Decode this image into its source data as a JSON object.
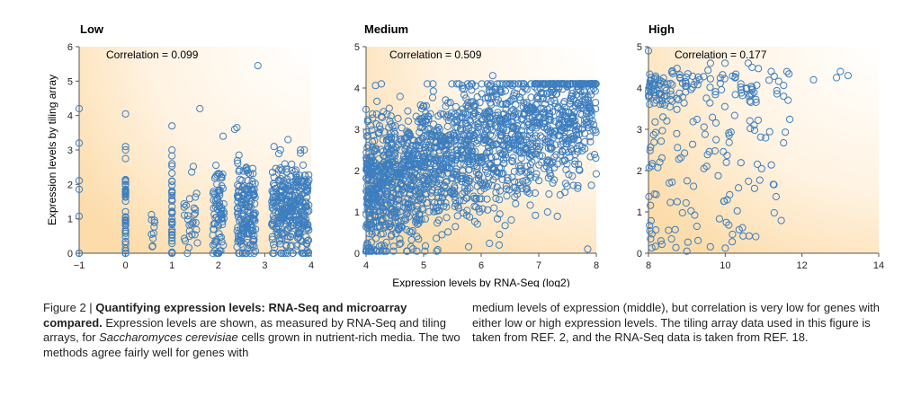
{
  "colors": {
    "marker": "#3d7ebf",
    "gradient_outer": "#fcdcaa",
    "gradient_inner": "#ffffff",
    "axis": "#555555",
    "text": "#231f20"
  },
  "chart_data": [
    {
      "type": "scatter",
      "title": "Low",
      "annotation": "Correlation = 0.099",
      "xlim": [
        -1,
        4
      ],
      "ylim": [
        0,
        6
      ],
      "xticks": [
        -1,
        0,
        1,
        2,
        3,
        4
      ],
      "yticks": [
        0,
        1,
        2,
        3,
        4,
        5,
        6
      ],
      "ylabel": "Expression levels by tiling array",
      "seed": 11,
      "clusters": [
        {
          "x": -1,
          "x_spread": 0.0,
          "n": 6,
          "y_mean": 1.2,
          "y_sd": 1.4
        },
        {
          "x": 0,
          "x_spread": 0.0,
          "n": 40,
          "y_mean": 1.0,
          "y_sd": 0.9
        },
        {
          "x": 0.6,
          "x_spread": 0.05,
          "n": 10,
          "y_mean": 0.9,
          "y_sd": 0.6
        },
        {
          "x": 1,
          "x_spread": 0.0,
          "n": 40,
          "y_mean": 1.1,
          "y_sd": 0.8
        },
        {
          "x": 1.4,
          "x_spread": 0.15,
          "n": 30,
          "y_mean": 1.0,
          "y_sd": 0.7
        },
        {
          "x": 2,
          "x_spread": 0.12,
          "n": 80,
          "y_mean": 1.1,
          "y_sd": 0.8
        },
        {
          "x": 2.6,
          "x_spread": 0.2,
          "n": 170,
          "y_mean": 1.2,
          "y_sd": 0.75
        },
        {
          "x": 3.55,
          "x_spread": 0.4,
          "n": 320,
          "y_mean": 1.3,
          "y_sd": 0.75
        }
      ],
      "outliers": [
        [
          -1,
          4.2
        ],
        [
          -1,
          3.2
        ],
        [
          0,
          4.05
        ],
        [
          0,
          3.1
        ],
        [
          1,
          3.7
        ],
        [
          1.6,
          4.2
        ],
        [
          2.4,
          3.65
        ],
        [
          2.35,
          3.6
        ],
        [
          2.85,
          5.45
        ],
        [
          3.5,
          3.3
        ],
        [
          2.1,
          3.4
        ],
        [
          3.2,
          3.1
        ]
      ],
      "xlabel": ""
    },
    {
      "type": "scatter",
      "title": "Medium",
      "annotation": "Correlation = 0.509",
      "xlim": [
        4,
        8
      ],
      "ylim": [
        0,
        5
      ],
      "xticks": [
        4,
        5,
        6,
        7,
        8
      ],
      "yticks": [
        0,
        1,
        2,
        3,
        4,
        5
      ],
      "xlabel": "Expression levels by RNA-Seq (log2)",
      "ylabel": "",
      "seed": 23,
      "n_points": 1900,
      "trend": {
        "x0": 4.0,
        "y0": 1.55,
        "x1": 8.0,
        "y1": 3.6
      },
      "noise_sd": 0.85,
      "outliers": [
        [
          5.9,
          4.05
        ],
        [
          6.2,
          4.3
        ],
        [
          4.3,
          0.1
        ],
        [
          7.85,
          0.1
        ]
      ]
    },
    {
      "type": "scatter",
      "title": "High",
      "annotation": "Correlation = 0.177",
      "xlim": [
        8,
        14
      ],
      "ylim": [
        0,
        5
      ],
      "xticks": [
        8,
        10,
        12,
        14
      ],
      "yticks": [
        0,
        1,
        2,
        3,
        4,
        5
      ],
      "xlabel": "",
      "ylabel": "",
      "seed": 37,
      "upper_group": {
        "n": 140,
        "x_min": 8.0,
        "x_max": 11.7,
        "y_mean": 3.95,
        "y_sd": 0.3
      },
      "lower_group": {
        "n": 110,
        "x_min": 8.0,
        "x_max": 11.6,
        "y_min": 0.1,
        "y_max": 3.3
      },
      "outliers": [
        [
          13.0,
          4.4
        ],
        [
          13.2,
          4.3
        ],
        [
          12.3,
          4.2
        ],
        [
          12.9,
          4.25
        ],
        [
          11.2,
          4.4
        ],
        [
          10.7,
          4.5
        ],
        [
          10.6,
          4.6
        ],
        [
          9.0,
          0.05
        ],
        [
          8.0,
          4.9
        ]
      ]
    }
  ],
  "caption": {
    "figure_label": "Figure 2 | ",
    "title_bold_1": "Quantifying expression levels: RNA-Seq and microarray",
    "title_bold_2": "compared.",
    "text_1": " Expression levels are shown, as measured by RNA-Seq and tiling arrays, for ",
    "species_italic": "Saccharomyces cerevisiae",
    "text_2": " cells grown in nutrient-rich media. The two methods agree fairly well for genes with",
    "right_column": "medium levels of expression (middle), but correlation is very low for genes with either low or high expression levels. The tiling array data used in this figure is taken from REF. 2, and the RNA-Seq data is taken from REF. 18."
  }
}
